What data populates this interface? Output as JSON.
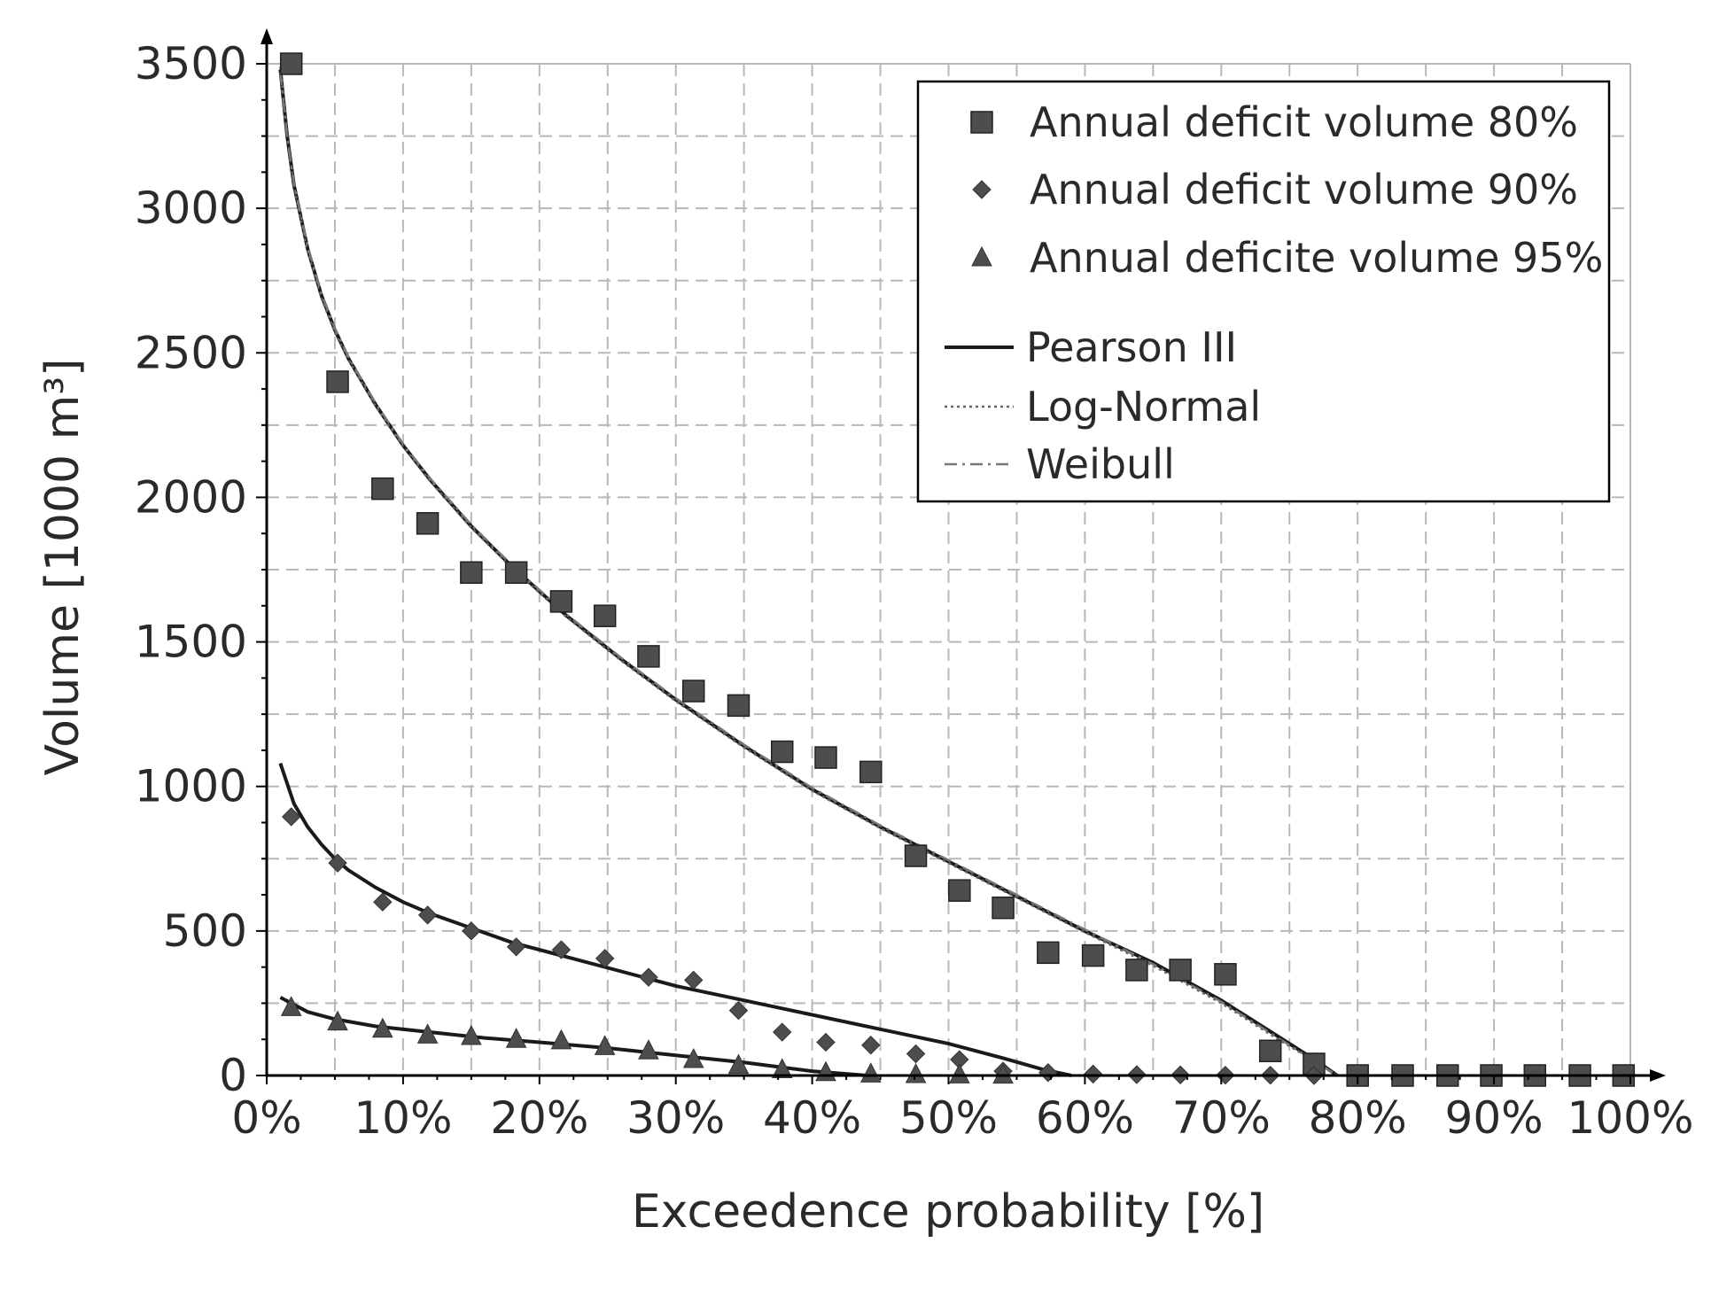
{
  "chart_data": {
    "type": "scatter",
    "title": "",
    "xlabel": "Exceedence probability [%]",
    "ylabel": "Volume [1000 m³]",
    "xlim": [
      0,
      100
    ],
    "ylim": [
      0,
      3500
    ],
    "grid": true,
    "legend_position": "top-right",
    "x_ticks": [
      0,
      10,
      20,
      30,
      40,
      50,
      60,
      70,
      80,
      90,
      100
    ],
    "x_tick_labels": [
      "0%",
      "10%",
      "20%",
      "30%",
      "40%",
      "50%",
      "60%",
      "70%",
      "80%",
      "90%",
      "100%"
    ],
    "y_ticks": [
      0,
      500,
      1000,
      1500,
      2000,
      2500,
      3000,
      3500
    ],
    "y_tick_labels": [
      "0",
      "500",
      "1000",
      "1500",
      "2000",
      "2500",
      "3000",
      "3500"
    ],
    "series": [
      {
        "name": "Annual deficit volume 80%",
        "marker": "square",
        "x": [
          1.8,
          5.2,
          8.5,
          11.8,
          15.0,
          18.3,
          21.6,
          24.8,
          28.0,
          31.3,
          34.6,
          37.8,
          41.0,
          44.3,
          47.6,
          50.8,
          54.0,
          57.3,
          60.6,
          63.8,
          67.0,
          70.3,
          73.6,
          76.8,
          80.0,
          83.3,
          86.6,
          89.8,
          93.0,
          96.3,
          99.5
        ],
        "values": [
          3500,
          2400,
          2030,
          1910,
          1740,
          1740,
          1640,
          1590,
          1450,
          1330,
          1280,
          1120,
          1100,
          1050,
          760,
          640,
          580,
          425,
          415,
          365,
          365,
          350,
          85,
          40,
          0,
          0,
          0,
          0,
          0,
          0,
          0
        ]
      },
      {
        "name": "Annual deficit volume 90%",
        "marker": "diamond",
        "x": [
          1.8,
          5.2,
          8.5,
          11.8,
          15.0,
          18.3,
          21.6,
          24.8,
          28.0,
          31.3,
          34.6,
          37.8,
          41.0,
          44.3,
          47.6,
          50.8,
          54.0,
          57.3,
          60.6,
          63.8,
          67.0,
          70.3,
          73.6,
          76.8
        ],
        "values": [
          895,
          735,
          600,
          555,
          500,
          445,
          435,
          405,
          340,
          330,
          225,
          150,
          115,
          105,
          75,
          55,
          15,
          10,
          5,
          3,
          2,
          1,
          1,
          0
        ]
      },
      {
        "name": "Annual deficite volume 95%",
        "marker": "triangle",
        "x": [
          1.8,
          5.2,
          8.5,
          11.8,
          15.0,
          18.3,
          21.6,
          24.8,
          28.0,
          31.3,
          34.6,
          37.8,
          41.0,
          44.3,
          47.6,
          50.8,
          54.0
        ],
        "values": [
          235,
          185,
          160,
          140,
          135,
          125,
          120,
          100,
          85,
          55,
          35,
          20,
          10,
          5,
          3,
          2,
          1
        ]
      }
    ],
    "fit_curves": [
      {
        "name": "Pearson III",
        "style": "solid",
        "curves": [
          {
            "x": [
              1.0,
              1.5,
              2.0,
              3.0,
              4.0,
              5.0,
              6.0,
              7.0,
              8.0,
              10.0,
              12.0,
              15.0,
              18.0,
              22.0,
              26.0,
              30.0,
              35.0,
              40.0,
              45.0,
              50.0,
              55.0,
              60.0,
              65.0,
              70.0,
              74.0,
              77.0,
              78.5
            ],
            "y": [
              3480,
              3250,
              3080,
              2860,
              2700,
              2580,
              2480,
              2400,
              2320,
              2180,
              2060,
              1900,
              1760,
              1590,
              1440,
              1300,
              1140,
              990,
              860,
              740,
              620,
              500,
              390,
              260,
              140,
              50,
              0
            ]
          },
          {
            "x": [
              1.0,
              2.0,
              3.0,
              4.0,
              5.0,
              6.0,
              8.0,
              10.0,
              12.0,
              15.0,
              18.0,
              22.0,
              26.0,
              30.0,
              35.0,
              40.0,
              45.0,
              50.0,
              54.0,
              57.0,
              59.0
            ],
            "y": [
              1080,
              940,
              860,
              800,
              750,
              710,
              650,
              600,
              560,
              510,
              460,
              410,
              360,
              310,
              260,
              210,
              160,
              110,
              60,
              20,
              0
            ]
          },
          {
            "x": [
              1.0,
              3.0,
              5.0,
              8.0,
              12.0,
              16.0,
              20.0,
              25.0,
              30.0,
              35.0,
              40.0,
              44.0
            ],
            "y": [
              270,
              220,
              195,
              170,
              150,
              130,
              115,
              95,
              70,
              45,
              15,
              0
            ]
          }
        ]
      },
      {
        "name": "Log-Normal",
        "style": "dotted",
        "curves": [
          {
            "x": [
              1.0,
              1.5,
              2.0,
              3.0,
              4.0,
              5.0,
              6.0,
              7.0,
              8.0,
              10.0,
              12.0,
              15.0,
              18.0,
              22.0,
              26.0,
              30.0,
              35.0,
              40.0,
              45.0,
              50.0,
              55.0,
              60.0,
              65.0,
              70.0,
              74.0,
              77.0,
              78.5
            ],
            "y": [
              3490,
              3255,
              3075,
              2850,
              2690,
              2570,
              2475,
              2395,
              2315,
              2175,
              2055,
              1895,
              1755,
              1585,
              1435,
              1295,
              1135,
              985,
              855,
              735,
              615,
              495,
              380,
              250,
              130,
              45,
              0
            ]
          }
        ]
      },
      {
        "name": "Weibull",
        "style": "dashdot",
        "curves": [
          {
            "x": [
              1.0,
              1.5,
              2.0,
              3.0,
              4.0,
              5.0,
              6.0,
              7.0,
              8.0,
              10.0,
              12.0,
              15.0,
              18.0,
              22.0,
              26.0,
              30.0,
              35.0,
              40.0,
              45.0,
              50.0,
              55.0,
              60.0,
              65.0,
              70.0,
              74.0,
              77.0,
              78.5
            ],
            "y": [
              3470,
              3245,
              3085,
              2870,
              2705,
              2585,
              2485,
              2405,
              2325,
              2185,
              2065,
              1905,
              1765,
              1595,
              1445,
              1305,
              1145,
              995,
              865,
              745,
              625,
              505,
              385,
              255,
              135,
              45,
              0
            ]
          }
        ]
      }
    ]
  }
}
